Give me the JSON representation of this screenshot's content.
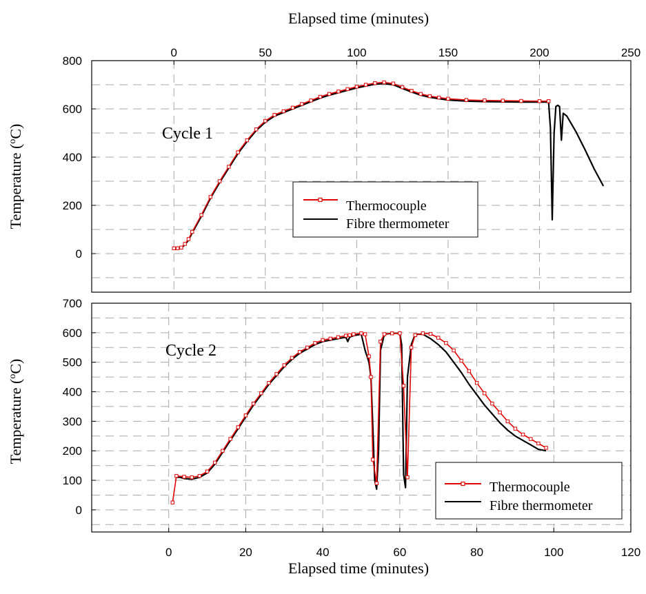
{
  "figure": {
    "top_xlabel": "Elapsed time (minutes)",
    "bottom_xlabel": "Elapsed time (minutes)"
  },
  "colors": {
    "thermocouple": "#e00000",
    "fibre": "#000000",
    "grid": "#a8a8a8"
  },
  "chart_data": [
    {
      "type": "line",
      "annotation": "Cycle 1",
      "xlabel": "Elapsed time (minutes)",
      "ylabel_prefix": "Temperature (",
      "ylabel_sup": "o",
      "ylabel_suffix": "C)",
      "xlim": [
        -45,
        250
      ],
      "ylim": [
        -160,
        800
      ],
      "xticks": [
        0,
        50,
        100,
        150,
        200,
        250
      ],
      "yticks": [
        0,
        200,
        400,
        600,
        800
      ],
      "grid": true,
      "legend_position": "lower-right",
      "series": [
        {
          "name": "Thermocouple",
          "marker": "square",
          "x": [
            0,
            2,
            4,
            6,
            8,
            10,
            15,
            20,
            25,
            30,
            35,
            40,
            45,
            50,
            55,
            60,
            65,
            70,
            75,
            80,
            85,
            90,
            95,
            100,
            105,
            110,
            115,
            120,
            125,
            130,
            135,
            140,
            145,
            150,
            160,
            170,
            180,
            190,
            200,
            205
          ],
          "y": [
            22,
            22,
            25,
            40,
            60,
            90,
            160,
            235,
            300,
            360,
            420,
            470,
            515,
            550,
            575,
            590,
            605,
            620,
            635,
            650,
            662,
            672,
            682,
            692,
            700,
            707,
            710,
            705,
            690,
            675,
            662,
            653,
            647,
            642,
            637,
            635,
            634,
            633,
            632,
            632
          ]
        },
        {
          "name": "Fibre thermometer",
          "x": [
            0,
            2,
            4,
            6,
            8,
            10,
            15,
            20,
            25,
            30,
            35,
            40,
            45,
            50,
            55,
            60,
            65,
            70,
            75,
            80,
            85,
            90,
            95,
            100,
            105,
            110,
            115,
            120,
            125,
            130,
            135,
            140,
            145,
            150,
            160,
            170,
            180,
            190,
            200,
            205,
            206,
            207,
            208,
            209,
            210,
            211,
            212,
            213,
            215,
            220,
            225,
            230,
            235
          ],
          "y": [
            20,
            20,
            23,
            37,
            56,
            86,
            155,
            230,
            295,
            355,
            415,
            465,
            510,
            545,
            570,
            585,
            600,
            615,
            630,
            645,
            657,
            667,
            677,
            687,
            695,
            702,
            705,
            700,
            685,
            670,
            657,
            648,
            642,
            637,
            632,
            630,
            629,
            628,
            628,
            628,
            520,
            140,
            500,
            610,
            615,
            610,
            470,
            582,
            570,
            505,
            430,
            350,
            280
          ]
        }
      ]
    },
    {
      "type": "line",
      "annotation": "Cycle 2",
      "xlabel": "Elapsed time (minutes)",
      "ylabel_prefix": "Temperature (",
      "ylabel_sup": "o",
      "ylabel_suffix": "C)",
      "xlim": [
        -20,
        120
      ],
      "ylim": [
        -75,
        700
      ],
      "xticks": [
        0,
        20,
        40,
        60,
        80,
        100,
        120
      ],
      "yticks": [
        0,
        100,
        200,
        300,
        400,
        500,
        600,
        700
      ],
      "grid": true,
      "legend_position": "lower-right",
      "series": [
        {
          "name": "Thermocouple",
          "marker": "square",
          "x": [
            1,
            2,
            4,
            6,
            8,
            10,
            12,
            14,
            16,
            18,
            20,
            22,
            24,
            26,
            28,
            30,
            32,
            34,
            36,
            38,
            40,
            42,
            44,
            46,
            47,
            48,
            50,
            51,
            52,
            52.5,
            53,
            54,
            55,
            56,
            58,
            60,
            61,
            62,
            63,
            64,
            66,
            68,
            70,
            72,
            74,
            76,
            78,
            80,
            82,
            84,
            86,
            88,
            90,
            92,
            94,
            96,
            98
          ],
          "y": [
            25,
            115,
            112,
            110,
            115,
            130,
            160,
            200,
            240,
            280,
            320,
            360,
            395,
            430,
            460,
            490,
            515,
            535,
            550,
            565,
            575,
            580,
            585,
            590,
            592,
            595,
            598,
            595,
            520,
            450,
            170,
            90,
            570,
            595,
            598,
            598,
            420,
            110,
            550,
            592,
            598,
            596,
            583,
            565,
            540,
            505,
            470,
            430,
            395,
            360,
            330,
            300,
            275,
            255,
            240,
            225,
            210
          ]
        },
        {
          "name": "Fibre thermometer",
          "x": [
            2,
            3,
            4,
            6,
            8,
            10,
            12,
            14,
            16,
            18,
            20,
            22,
            24,
            26,
            28,
            30,
            32,
            34,
            36,
            38,
            40,
            42,
            44,
            46,
            46.5,
            47,
            48,
            50,
            51,
            52,
            52.5,
            53,
            53.5,
            54,
            54.5,
            55,
            56,
            58,
            60,
            60.5,
            61,
            61.5,
            62,
            63,
            64,
            66,
            68,
            70,
            72,
            74,
            76,
            78,
            80,
            82,
            84,
            86,
            88,
            90,
            92,
            94,
            96,
            98
          ],
          "y": [
            110,
            110,
            106,
            104,
            110,
            125,
            155,
            195,
            235,
            275,
            315,
            355,
            390,
            425,
            455,
            485,
            510,
            530,
            545,
            560,
            570,
            575,
            580,
            585,
            570,
            585,
            590,
            595,
            540,
            500,
            450,
            280,
            100,
            70,
            200,
            540,
            595,
            598,
            598,
            560,
            120,
            75,
            450,
            560,
            595,
            595,
            580,
            560,
            535,
            500,
            465,
            425,
            390,
            355,
            325,
            295,
            270,
            250,
            235,
            220,
            205,
            200
          ]
        }
      ]
    }
  ]
}
